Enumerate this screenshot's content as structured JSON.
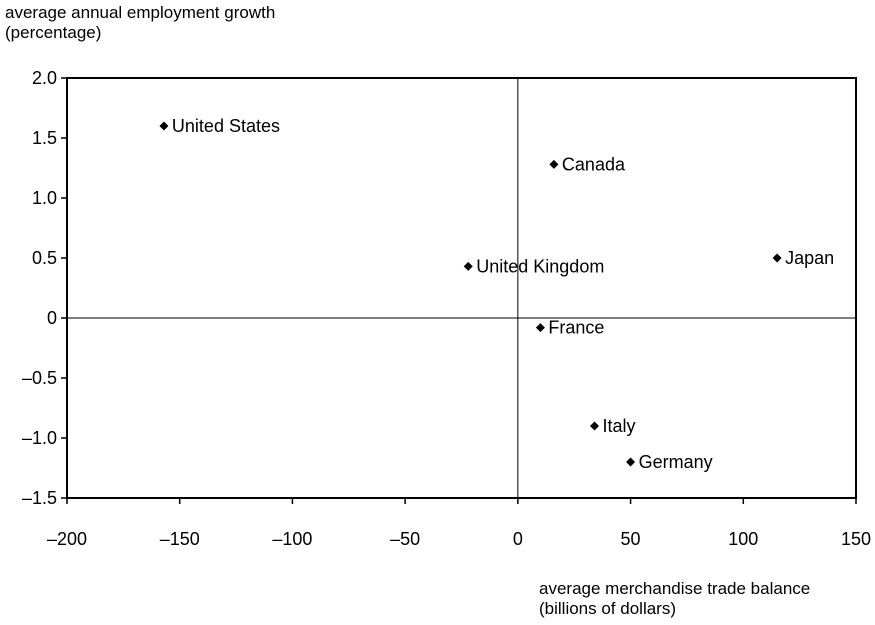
{
  "chart_data": {
    "type": "scatter",
    "title": "",
    "ylabel_lines": [
      "average annual employment growth",
      "(percentage)"
    ],
    "xlabel_lines": [
      "average merchandise trade balance",
      "(billions of dollars)"
    ],
    "xlim": [
      -200,
      150
    ],
    "ylim": [
      -1.5,
      2.0
    ],
    "x_ticks": [
      -200,
      -150,
      -100,
      -50,
      0,
      50,
      100,
      150
    ],
    "x_tick_labels": [
      "–200",
      "–150",
      "–100",
      "–50",
      "0",
      "50",
      "100",
      "150"
    ],
    "y_ticks": [
      2.0,
      1.5,
      1.0,
      0.5,
      0,
      -0.5,
      -1.0,
      -1.5
    ],
    "y_tick_labels": [
      "2.0",
      "1.5",
      "1.0",
      "0.5",
      "0",
      "–0.5",
      "–1.0",
      "–1.5"
    ],
    "grid": false,
    "zero_lines": true,
    "marker": "diamond",
    "marker_color": "#000000",
    "points": [
      {
        "label": "United States",
        "x": -157,
        "y": 1.6
      },
      {
        "label": "Canada",
        "x": 16,
        "y": 1.28
      },
      {
        "label": "United Kingdom",
        "x": -22,
        "y": 0.43
      },
      {
        "label": "Japan",
        "x": 115,
        "y": 0.5
      },
      {
        "label": "France",
        "x": 10,
        "y": -0.08
      },
      {
        "label": "Italy",
        "x": 34,
        "y": -0.9
      },
      {
        "label": "Germany",
        "x": 50,
        "y": -1.2
      }
    ]
  }
}
